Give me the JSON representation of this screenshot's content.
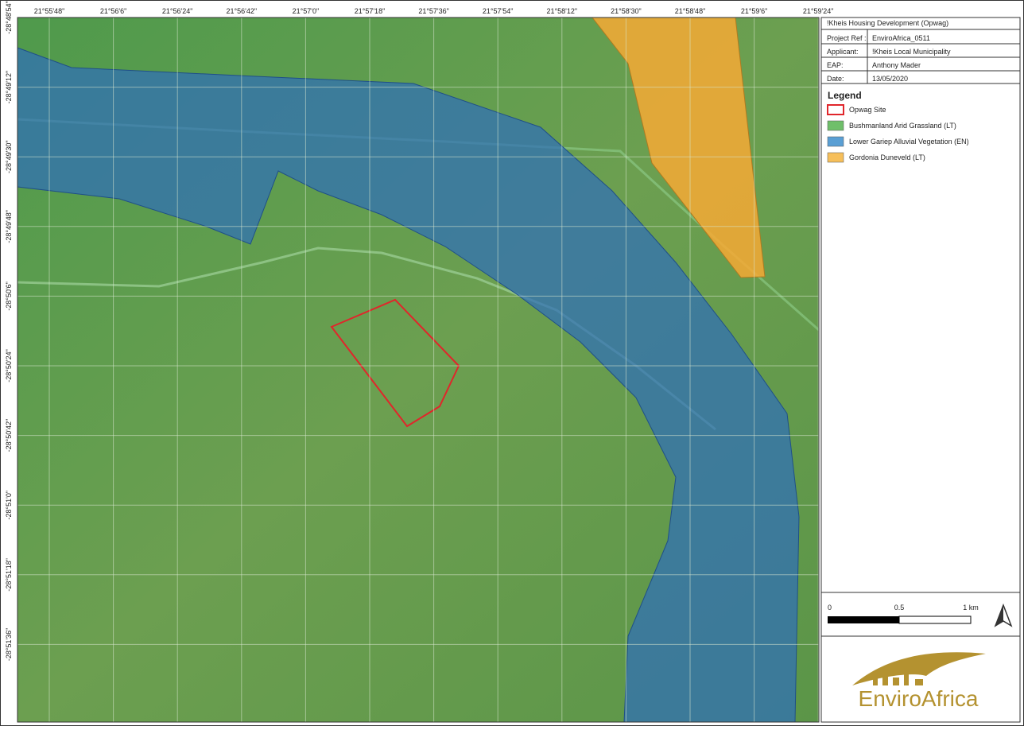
{
  "map_title": "!Kheis Housing Development (Opwag)",
  "info": [
    {
      "label": "Project Ref :",
      "value": "EnviroAfrica_0511"
    },
    {
      "label": "Applicant:",
      "value": "!Kheis Local Municipality"
    },
    {
      "label": "EAP:",
      "value": "Anthony Mader"
    },
    {
      "label": "Date:",
      "value": "13/05/2020"
    }
  ],
  "legend": {
    "title": "Legend",
    "items": [
      {
        "name": "Opwag Site",
        "color": "#e0262b",
        "kind": "outline"
      },
      {
        "name": "Bushmanland Arid Grassland (LT)",
        "color": "#6fbf6a",
        "kind": "fill"
      },
      {
        "name": "Lower Gariep Alluvial Vegetation (EN)",
        "color": "#5a9fd4",
        "kind": "fill"
      },
      {
        "name": "Gordonia Duneveld (LT)",
        "color": "#f6bf5a",
        "kind": "fill"
      }
    ]
  },
  "longitude_labels": [
    "21°55'48\"",
    "21°56'6\"",
    "21°56'24\"",
    "21°56'42\"",
    "21°57'0\"",
    "21°57'18\"",
    "21°57'36\"",
    "21°57'54\"",
    "21°58'12\"",
    "21°58'30\"",
    "21°58'48\"",
    "21°59'6\"",
    "21°59'24\""
  ],
  "latitude_labels": [
    "-28°48'54\"",
    "-28°49'12\"",
    "-28°49'30\"",
    "-28°49'48\"",
    "-28°50'6\"",
    "-28°50'24\"",
    "-28°50'42\"",
    "-28°51'0\"",
    "-28°51'18\"",
    "-28°51'36\""
  ],
  "scale_bar": {
    "labels": [
      "0",
      "0.5",
      "1 km"
    ]
  },
  "logo": {
    "text": "EnviroAfrica"
  }
}
